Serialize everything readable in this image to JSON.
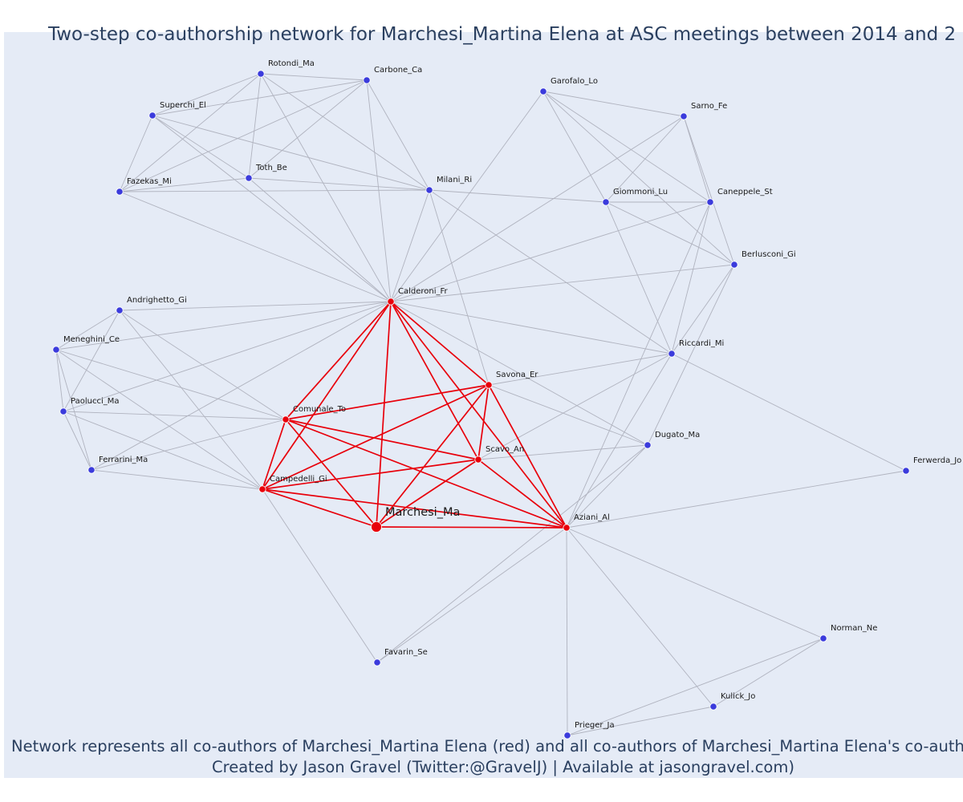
{
  "title": "Two-step co-authorship network for Marchesi_Martina Elena at ASC meetings between 2014 and 2",
  "footer": {
    "line1": "Network represents all co-authors of Marchesi_Martina Elena (red) and all co-authors of Marchesi_Martina Elena's co-authors (b",
    "line2": "Created by Jason Gravel (Twitter:@GravelJ) | Available at jasongravel.com)"
  },
  "colors": {
    "background": "#e5ebf6",
    "direct_coauthor": "#e8000b",
    "second_step": "#3b3bdc",
    "gray_edge": "#b0b3bf",
    "text": "#2a3f5f"
  },
  "nodes": [
    {
      "id": "Marchesi_Ma",
      "group": "center"
    },
    {
      "id": "Calderoni_Fr",
      "group": "red"
    },
    {
      "id": "Comunale_To",
      "group": "red"
    },
    {
      "id": "Campedelli_Gi",
      "group": "red"
    },
    {
      "id": "Savona_Er",
      "group": "red"
    },
    {
      "id": "Scavo_An",
      "group": "red"
    },
    {
      "id": "Aziani_Al",
      "group": "red"
    },
    {
      "id": "Rotondi_Ma",
      "group": "blue"
    },
    {
      "id": "Carbone_Ca",
      "group": "blue"
    },
    {
      "id": "Superchi_El",
      "group": "blue"
    },
    {
      "id": "Toth_Be",
      "group": "blue"
    },
    {
      "id": "Fazekas_Mi",
      "group": "blue"
    },
    {
      "id": "Milani_Ri",
      "group": "blue"
    },
    {
      "id": "Garofalo_Lo",
      "group": "blue"
    },
    {
      "id": "Sarno_Fe",
      "group": "blue"
    },
    {
      "id": "Giommoni_Lu",
      "group": "blue"
    },
    {
      "id": "Caneppele_St",
      "group": "blue"
    },
    {
      "id": "Berlusconi_Gi",
      "group": "blue"
    },
    {
      "id": "Andrighetto_Gi",
      "group": "blue"
    },
    {
      "id": "Meneghini_Ce",
      "group": "blue"
    },
    {
      "id": "Paolucci_Ma",
      "group": "blue"
    },
    {
      "id": "Ferrarini_Ma",
      "group": "blue"
    },
    {
      "id": "Riccardi_Mi",
      "group": "blue"
    },
    {
      "id": "Dugato_Ma",
      "group": "blue"
    },
    {
      "id": "Ferwerda_Jo",
      "group": "blue"
    },
    {
      "id": "Favarin_Se",
      "group": "blue"
    },
    {
      "id": "Norman_Ne",
      "group": "blue"
    },
    {
      "id": "Kulick_Jo",
      "group": "blue"
    },
    {
      "id": "Prieger_Ja",
      "group": "blue"
    }
  ],
  "red_edges": [
    [
      "Marchesi_Ma",
      "Calderoni_Fr"
    ],
    [
      "Marchesi_Ma",
      "Comunale_To"
    ],
    [
      "Marchesi_Ma",
      "Campedelli_Gi"
    ],
    [
      "Marchesi_Ma",
      "Savona_Er"
    ],
    [
      "Marchesi_Ma",
      "Scavo_An"
    ],
    [
      "Marchesi_Ma",
      "Aziani_Al"
    ],
    [
      "Calderoni_Fr",
      "Comunale_To"
    ],
    [
      "Calderoni_Fr",
      "Campedelli_Gi"
    ],
    [
      "Calderoni_Fr",
      "Savona_Er"
    ],
    [
      "Calderoni_Fr",
      "Scavo_An"
    ],
    [
      "Calderoni_Fr",
      "Aziani_Al"
    ],
    [
      "Comunale_To",
      "Campedelli_Gi"
    ],
    [
      "Comunale_To",
      "Savona_Er"
    ],
    [
      "Comunale_To",
      "Scavo_An"
    ],
    [
      "Comunale_To",
      "Aziani_Al"
    ],
    [
      "Campedelli_Gi",
      "Savona_Er"
    ],
    [
      "Campedelli_Gi",
      "Scavo_An"
    ],
    [
      "Campedelli_Gi",
      "Aziani_Al"
    ],
    [
      "Savona_Er",
      "Scavo_An"
    ],
    [
      "Savona_Er",
      "Aziani_Al"
    ],
    [
      "Scavo_An",
      "Aziani_Al"
    ]
  ],
  "gray_edges": [
    [
      "Rotondi_Ma",
      "Carbone_Ca"
    ],
    [
      "Rotondi_Ma",
      "Superchi_El"
    ],
    [
      "Rotondi_Ma",
      "Toth_Be"
    ],
    [
      "Rotondi_Ma",
      "Fazekas_Mi"
    ],
    [
      "Rotondi_Ma",
      "Milani_Ri"
    ],
    [
      "Rotondi_Ma",
      "Calderoni_Fr"
    ],
    [
      "Carbone_Ca",
      "Superchi_El"
    ],
    [
      "Carbone_Ca",
      "Toth_Be"
    ],
    [
      "Carbone_Ca",
      "Fazekas_Mi"
    ],
    [
      "Carbone_Ca",
      "Milani_Ri"
    ],
    [
      "Carbone_Ca",
      "Calderoni_Fr"
    ],
    [
      "Superchi_El",
      "Toth_Be"
    ],
    [
      "Superchi_El",
      "Fazekas_Mi"
    ],
    [
      "Superchi_El",
      "Milani_Ri"
    ],
    [
      "Superchi_El",
      "Calderoni_Fr"
    ],
    [
      "Toth_Be",
      "Fazekas_Mi"
    ],
    [
      "Toth_Be",
      "Milani_Ri"
    ],
    [
      "Toth_Be",
      "Calderoni_Fr"
    ],
    [
      "Fazekas_Mi",
      "Milani_Ri"
    ],
    [
      "Fazekas_Mi",
      "Calderoni_Fr"
    ],
    [
      "Milani_Ri",
      "Calderoni_Fr"
    ],
    [
      "Milani_Ri",
      "Savona_Er"
    ],
    [
      "Milani_Ri",
      "Riccardi_Mi"
    ],
    [
      "Milani_Ri",
      "Giommoni_Lu"
    ],
    [
      "Garofalo_Lo",
      "Calderoni_Fr"
    ],
    [
      "Garofalo_Lo",
      "Sarno_Fe"
    ],
    [
      "Garofalo_Lo",
      "Giommoni_Lu"
    ],
    [
      "Garofalo_Lo",
      "Caneppele_St"
    ],
    [
      "Garofalo_Lo",
      "Berlusconi_Gi"
    ],
    [
      "Sarno_Fe",
      "Calderoni_Fr"
    ],
    [
      "Sarno_Fe",
      "Giommoni_Lu"
    ],
    [
      "Sarno_Fe",
      "Caneppele_St"
    ],
    [
      "Sarno_Fe",
      "Berlusconi_Gi"
    ],
    [
      "Giommoni_Lu",
      "Caneppele_St"
    ],
    [
      "Giommoni_Lu",
      "Berlusconi_Gi"
    ],
    [
      "Giommoni_Lu",
      "Riccardi_Mi"
    ],
    [
      "Caneppele_St",
      "Calderoni_Fr"
    ],
    [
      "Caneppele_St",
      "Riccardi_Mi"
    ],
    [
      "Caneppele_St",
      "Aziani_Al"
    ],
    [
      "Berlusconi_Gi",
      "Calderoni_Fr"
    ],
    [
      "Berlusconi_Gi",
      "Riccardi_Mi"
    ],
    [
      "Berlusconi_Gi",
      "Dugato_Ma"
    ],
    [
      "Calderoni_Fr",
      "Riccardi_Mi"
    ],
    [
      "Calderoni_Fr",
      "Dugato_Ma"
    ],
    [
      "Calderoni_Fr",
      "Andrighetto_Gi"
    ],
    [
      "Calderoni_Fr",
      "Meneghini_Ce"
    ],
    [
      "Calderoni_Fr",
      "Paolucci_Ma"
    ],
    [
      "Calderoni_Fr",
      "Ferrarini_Ma"
    ],
    [
      "Andrighetto_Gi",
      "Meneghini_Ce"
    ],
    [
      "Andrighetto_Gi",
      "Paolucci_Ma"
    ],
    [
      "Andrighetto_Gi",
      "Comunale_To"
    ],
    [
      "Andrighetto_Gi",
      "Campedelli_Gi"
    ],
    [
      "Meneghini_Ce",
      "Paolucci_Ma"
    ],
    [
      "Meneghini_Ce",
      "Ferrarini_Ma"
    ],
    [
      "Meneghini_Ce",
      "Comunale_To"
    ],
    [
      "Meneghini_Ce",
      "Campedelli_Gi"
    ],
    [
      "Paolucci_Ma",
      "Comunale_To"
    ],
    [
      "Paolucci_Ma",
      "Campedelli_Gi"
    ],
    [
      "Paolucci_Ma",
      "Ferrarini_Ma"
    ],
    [
      "Ferrarini_Ma",
      "Comunale_To"
    ],
    [
      "Ferrarini_Ma",
      "Campedelli_Gi"
    ],
    [
      "Campedelli_Gi",
      "Favarin_Se"
    ],
    [
      "Savona_Er",
      "Riccardi_Mi"
    ],
    [
      "Savona_Er",
      "Dugato_Ma"
    ],
    [
      "Scavo_An",
      "Dugato_Ma"
    ],
    [
      "Scavo_An",
      "Riccardi_Mi"
    ],
    [
      "Riccardi_Mi",
      "Aziani_Al"
    ],
    [
      "Riccardi_Mi",
      "Ferwerda_Jo"
    ],
    [
      "Dugato_Ma",
      "Aziani_Al"
    ],
    [
      "Dugato_Ma",
      "Favarin_Se"
    ],
    [
      "Aziani_Al",
      "Favarin_Se"
    ],
    [
      "Aziani_Al",
      "Ferwerda_Jo"
    ],
    [
      "Aziani_Al",
      "Norman_Ne"
    ],
    [
      "Aziani_Al",
      "Kulick_Jo"
    ],
    [
      "Aziani_Al",
      "Prieger_Ja"
    ],
    [
      "Norman_Ne",
      "Kulick_Jo"
    ],
    [
      "Norman_Ne",
      "Prieger_Ja"
    ],
    [
      "Kulick_Jo",
      "Prieger_Ja"
    ]
  ]
}
